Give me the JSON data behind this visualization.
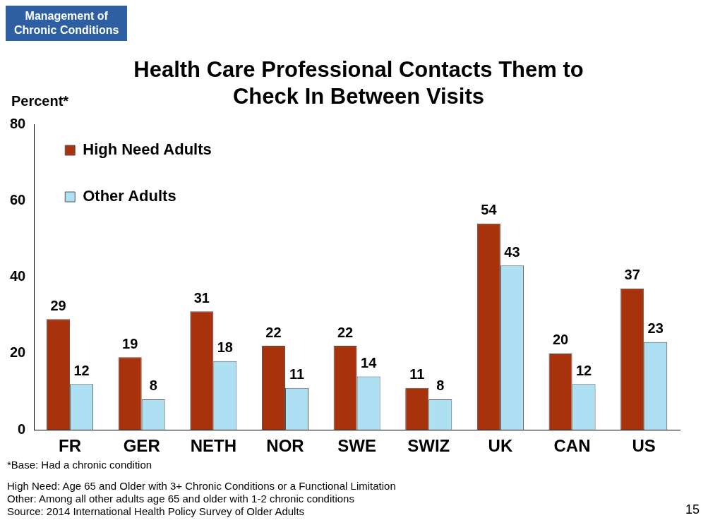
{
  "chart_data": {
    "type": "bar",
    "subtitle": "Management of\nChronic Conditions",
    "title": "Health Care Professional Contacts Them to Check In Between Visits",
    "ylabel": "Percent*",
    "categories": [
      "FR",
      "GER",
      "NETH",
      "NOR",
      "SWE",
      "SWIZ",
      "UK",
      "CAN",
      "US"
    ],
    "series": [
      {
        "name": "High Need Adults",
        "color": "#a8320c",
        "values": [
          29,
          19,
          31,
          22,
          22,
          11,
          54,
          20,
          37
        ]
      },
      {
        "name": "Other Adults",
        "color": "#aee0f4",
        "values": [
          12,
          8,
          18,
          11,
          14,
          8,
          43,
          12,
          23
        ]
      }
    ],
    "ylim": [
      0,
      80
    ],
    "yticks": [
      0,
      20,
      40,
      60,
      80
    ],
    "grid": false,
    "legend": "top left",
    "data_labels": true,
    "annotations": [
      "*Base: Had a chronic condition",
      "High Need: Age 65 and Older with 3+ Chronic Conditions or a Functional Limitation",
      "Other: Among all other adults age 65 and older with 1-2 chronic conditions",
      "Source: 2014 International Health Policy Survey of Older Adults",
      "15"
    ]
  }
}
